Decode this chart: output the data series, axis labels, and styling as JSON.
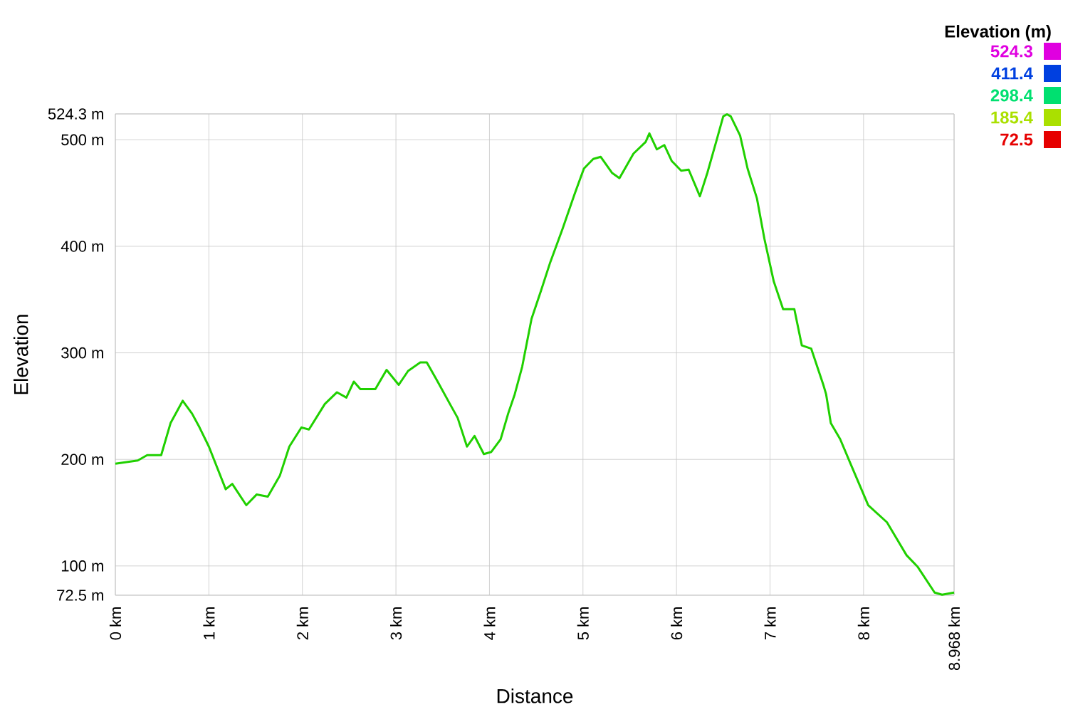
{
  "chart_data": {
    "type": "line",
    "xlabel": "Distance",
    "ylabel": "Elevation",
    "clabel": "Elevation (m)",
    "x": [
      0,
      0.24,
      0.34,
      0.49,
      0.59,
      0.72,
      0.82,
      0.9,
      1.0,
      1.18,
      1.25,
      1.4,
      1.51,
      1.63,
      1.76,
      1.86,
      1.99,
      2.07,
      2.24,
      2.37,
      2.47,
      2.55,
      2.62,
      2.78,
      2.9,
      3.03,
      3.13,
      3.26,
      3.33,
      3.44,
      3.59,
      3.66,
      3.76,
      3.84,
      3.94,
      4.02,
      4.12,
      4.2,
      4.27,
      4.35,
      4.45,
      4.55,
      4.65,
      4.78,
      4.91,
      5.01,
      5.11,
      5.19,
      5.31,
      5.39,
      5.54,
      5.67,
      5.71,
      5.79,
      5.87,
      5.95,
      6.05,
      6.13,
      6.25,
      6.33,
      6.43,
      6.5,
      6.54,
      6.58,
      6.68,
      6.76,
      6.86,
      6.94,
      7.04,
      7.14,
      7.26,
      7.34,
      7.44,
      7.57,
      7.6,
      7.65,
      7.75,
      7.87,
      8.05,
      8.25,
      8.46,
      8.58,
      8.76,
      8.84,
      8.968
    ],
    "values": [
      196,
      199,
      204,
      204,
      234,
      255,
      243,
      230,
      212,
      172,
      177,
      157,
      167,
      165,
      185,
      212,
      230,
      228,
      252,
      263,
      258,
      273,
      266,
      266,
      284,
      270,
      283,
      291,
      291,
      274,
      250,
      239,
      212,
      222,
      205,
      207,
      219,
      243,
      261,
      287,
      332,
      358,
      385,
      416,
      449,
      473,
      482,
      484,
      469,
      464,
      487,
      498,
      506,
      491,
      495,
      480,
      471,
      472,
      447,
      469,
      500,
      522,
      524,
      522,
      504,
      473,
      445,
      407,
      367,
      341,
      341,
      307,
      304,
      270,
      261,
      234,
      219,
      194,
      157,
      141,
      110,
      99,
      75,
      73,
      75
    ],
    "xlim": [
      0,
      8.968
    ],
    "ylim": [
      72.5,
      524.3
    ],
    "xticks": [
      {
        "value": 0,
        "label": "0 km"
      },
      {
        "value": 1,
        "label": "1 km"
      },
      {
        "value": 2,
        "label": "2 km"
      },
      {
        "value": 3,
        "label": "3 km"
      },
      {
        "value": 4,
        "label": "4 km"
      },
      {
        "value": 5,
        "label": "5 km"
      },
      {
        "value": 6,
        "label": "6 km"
      },
      {
        "value": 7,
        "label": "7 km"
      },
      {
        "value": 8,
        "label": "8 km"
      },
      {
        "value": 8.968,
        "label": "8.968 km"
      }
    ],
    "yticks": [
      {
        "value": 72.5,
        "label": "72.5 m"
      },
      {
        "value": 100,
        "label": "100 m"
      },
      {
        "value": 200,
        "label": "200 m"
      },
      {
        "value": 300,
        "label": "300 m"
      },
      {
        "value": 400,
        "label": "400 m"
      },
      {
        "value": 500,
        "label": "500 m"
      },
      {
        "value": 524.3,
        "label": "524.3 m"
      }
    ],
    "color": "#20d000",
    "grid": true,
    "cticks": [
      72.5,
      185.4,
      298.4,
      411.4,
      524.3
    ]
  }
}
